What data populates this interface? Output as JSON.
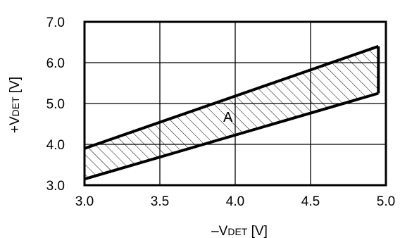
{
  "chart_data": {
    "type": "area",
    "title": "",
    "xlabel": {
      "prefix": "–V",
      "sub": "DET",
      "suffix": " [V]"
    },
    "ylabel": {
      "prefix": "+V",
      "sub": "DET",
      "suffix": " [V]"
    },
    "xlim": [
      3.0,
      5.0
    ],
    "ylim": [
      3.0,
      7.0
    ],
    "x_ticks": [
      "3.0",
      "3.5",
      "4.0",
      "4.5",
      "5.0"
    ],
    "y_ticks": [
      "3.0",
      "4.0",
      "5.0",
      "6.0",
      "7.0"
    ],
    "grid": true,
    "region": {
      "label": "A",
      "fill": "hatched",
      "upper": {
        "x": [
          3.0,
          4.95
        ],
        "y": [
          3.9,
          6.4
        ]
      },
      "lower": {
        "x": [
          3.0,
          4.95
        ],
        "y": [
          3.15,
          5.25
        ]
      }
    },
    "colors": {
      "line": "#000000",
      "hatch": "#000000",
      "background": "#ffffff"
    }
  }
}
